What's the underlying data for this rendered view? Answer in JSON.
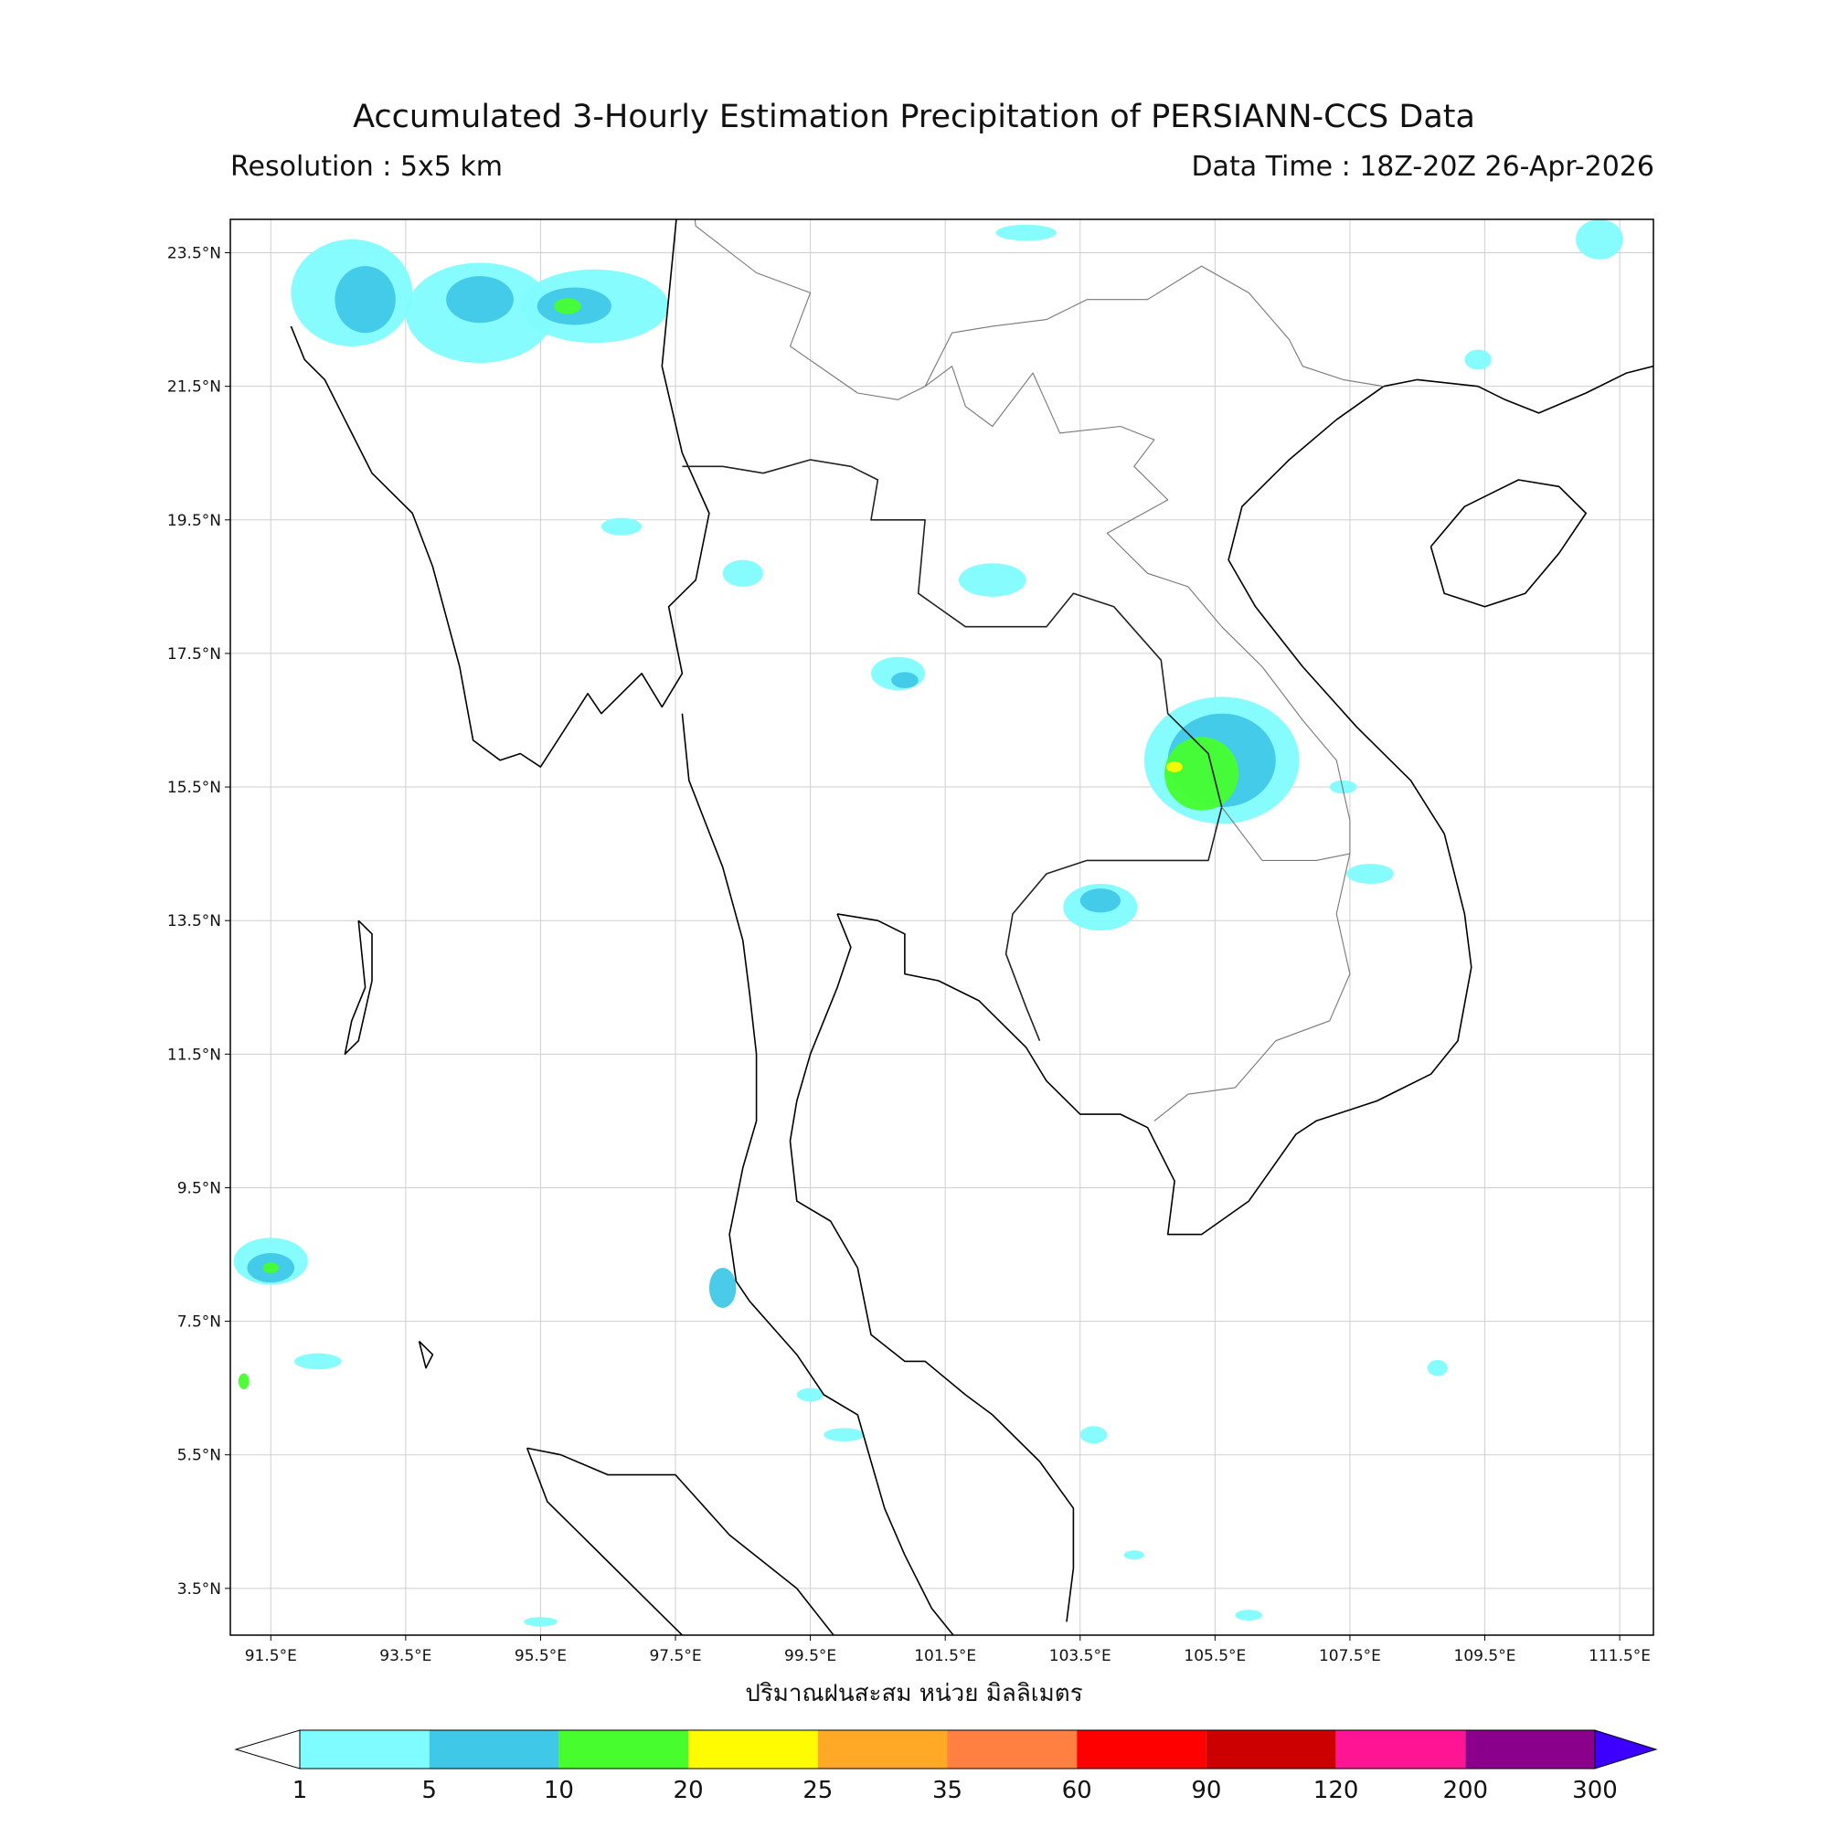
{
  "title": "Accumulated 3-Hourly Estimation Precipitation of PERSIANN-CCS Data",
  "resolution": "Resolution : 5x5 km",
  "data_time": "Data Time : 18Z-20Z 26-Apr-2026",
  "x_axis_label": "ปริมาณฝนสะสม หน่วย มิลลิเมตร",
  "lat_ticks": [
    "23.5°N",
    "21.5°N",
    "19.5°N",
    "17.5°N",
    "15.5°N",
    "13.5°N",
    "11.5°N",
    "9.5°N",
    "7.5°N",
    "5.5°N",
    "3.5°N"
  ],
  "lon_ticks": [
    "91.5°E",
    "93.5°E",
    "95.5°E",
    "97.5°E",
    "99.5°E",
    "101.5°E",
    "103.5°E",
    "105.5°E",
    "107.5°E",
    "109.5°E",
    "111.5°E"
  ],
  "colorbar": {
    "labels": [
      "1",
      "5",
      "10",
      "20",
      "25",
      "35",
      "60",
      "90",
      "120",
      "200",
      "300"
    ],
    "colors": [
      "#7ffcff",
      "#40c8e8",
      "#47fd2e",
      "#fffb00",
      "#ffa927",
      "#ff8040",
      "#ff0000",
      "#cc0000",
      "#ff1493",
      "#8b008b",
      "#3d00ff"
    ]
  },
  "rain_cells": [
    {
      "lon": 92.7,
      "lat": 22.9,
      "rx": 0.9,
      "ry": 0.8,
      "lvl": 0
    },
    {
      "lon": 92.9,
      "lat": 22.8,
      "rx": 0.45,
      "ry": 0.5,
      "lvl": 1
    },
    {
      "lon": 94.6,
      "lat": 22.6,
      "rx": 1.1,
      "ry": 0.75,
      "lvl": 0
    },
    {
      "lon": 94.6,
      "lat": 22.8,
      "rx": 0.5,
      "ry": 0.35,
      "lvl": 1
    },
    {
      "lon": 96.3,
      "lat": 22.7,
      "rx": 1.1,
      "ry": 0.55,
      "lvl": 0
    },
    {
      "lon": 96.0,
      "lat": 22.7,
      "rx": 0.55,
      "ry": 0.28,
      "lvl": 1
    },
    {
      "lon": 95.9,
      "lat": 22.7,
      "rx": 0.2,
      "ry": 0.12,
      "lvl": 2
    },
    {
      "lon": 102.2,
      "lat": 18.6,
      "rx": 0.5,
      "ry": 0.25,
      "lvl": 0
    },
    {
      "lon": 98.5,
      "lat": 18.7,
      "rx": 0.3,
      "ry": 0.2,
      "lvl": 0
    },
    {
      "lon": 100.8,
      "lat": 17.2,
      "rx": 0.4,
      "ry": 0.25,
      "lvl": 0
    },
    {
      "lon": 100.9,
      "lat": 17.1,
      "rx": 0.2,
      "ry": 0.12,
      "lvl": 1
    },
    {
      "lon": 96.7,
      "lat": 19.4,
      "rx": 0.3,
      "ry": 0.13,
      "lvl": 0
    },
    {
      "lon": 105.6,
      "lat": 15.9,
      "rx": 1.15,
      "ry": 0.95,
      "lvl": 0
    },
    {
      "lon": 105.6,
      "lat": 15.9,
      "rx": 0.8,
      "ry": 0.7,
      "lvl": 1
    },
    {
      "lon": 105.3,
      "lat": 15.7,
      "rx": 0.55,
      "ry": 0.55,
      "lvl": 2
    },
    {
      "lon": 104.9,
      "lat": 15.8,
      "rx": 0.12,
      "ry": 0.08,
      "lvl": 3
    },
    {
      "lon": 103.8,
      "lat": 13.7,
      "rx": 0.55,
      "ry": 0.35,
      "lvl": 0
    },
    {
      "lon": 103.8,
      "lat": 13.8,
      "rx": 0.3,
      "ry": 0.18,
      "lvl": 1
    },
    {
      "lon": 91.5,
      "lat": 8.4,
      "rx": 0.55,
      "ry": 0.35,
      "lvl": 0
    },
    {
      "lon": 91.5,
      "lat": 8.3,
      "rx": 0.35,
      "ry": 0.22,
      "lvl": 1
    },
    {
      "lon": 91.5,
      "lat": 8.3,
      "rx": 0.12,
      "ry": 0.08,
      "lvl": 2
    },
    {
      "lon": 92.2,
      "lat": 6.9,
      "rx": 0.35,
      "ry": 0.12,
      "lvl": 0
    },
    {
      "lon": 91.1,
      "lat": 6.6,
      "rx": 0.08,
      "ry": 0.12,
      "lvl": 2
    },
    {
      "lon": 107.8,
      "lat": 14.2,
      "rx": 0.35,
      "ry": 0.15,
      "lvl": 0
    },
    {
      "lon": 107.4,
      "lat": 15.5,
      "rx": 0.2,
      "ry": 0.1,
      "lvl": 0
    },
    {
      "lon": 98.2,
      "lat": 8.0,
      "rx": 0.2,
      "ry": 0.3,
      "lvl": 1
    },
    {
      "lon": 100.0,
      "lat": 5.8,
      "rx": 0.3,
      "ry": 0.1,
      "lvl": 0
    },
    {
      "lon": 103.7,
      "lat": 5.8,
      "rx": 0.2,
      "ry": 0.13,
      "lvl": 0
    },
    {
      "lon": 111.2,
      "lat": 23.7,
      "rx": 0.35,
      "ry": 0.3,
      "lvl": 0
    },
    {
      "lon": 102.7,
      "lat": 23.8,
      "rx": 0.45,
      "ry": 0.12,
      "lvl": 0
    },
    {
      "lon": 109.4,
      "lat": 21.9,
      "rx": 0.2,
      "ry": 0.15,
      "lvl": 0
    },
    {
      "lon": 108.8,
      "lat": 6.8,
      "rx": 0.15,
      "ry": 0.12,
      "lvl": 0
    },
    {
      "lon": 99.5,
      "lat": 6.4,
      "rx": 0.2,
      "ry": 0.1,
      "lvl": 0
    },
    {
      "lon": 95.5,
      "lat": 3.0,
      "rx": 0.25,
      "ry": 0.07,
      "lvl": 0
    },
    {
      "lon": 106.0,
      "lat": 3.1,
      "rx": 0.2,
      "ry": 0.08,
      "lvl": 0
    },
    {
      "lon": 104.3,
      "lat": 4.0,
      "rx": 0.15,
      "ry": 0.07,
      "lvl": 0
    }
  ],
  "coastlines": {
    "indochina": [
      [
        97.9,
        28.0
      ],
      [
        97.3,
        21.8
      ],
      [
        97.6,
        20.5
      ],
      [
        98.0,
        19.6
      ],
      [
        97.8,
        18.6
      ],
      [
        97.4,
        18.2
      ],
      [
        97.6,
        17.2
      ],
      [
        97.3,
        16.7
      ],
      [
        97.0,
        17.2
      ],
      [
        96.4,
        16.6
      ],
      [
        96.2,
        16.9
      ],
      [
        95.5,
        15.8
      ],
      [
        95.2,
        16.0
      ],
      [
        94.9,
        15.9
      ],
      [
        94.5,
        16.2
      ],
      [
        94.3,
        17.3
      ],
      [
        93.9,
        18.8
      ],
      [
        93.6,
        19.6
      ],
      [
        93.0,
        20.2
      ],
      [
        92.6,
        21.0
      ],
      [
        92.3,
        21.6
      ],
      [
        92.0,
        21.9
      ],
      [
        91.8,
        22.4
      ]
    ],
    "malay_peninsula": [
      [
        97.6,
        16.6
      ],
      [
        97.7,
        15.6
      ],
      [
        98.2,
        14.3
      ],
      [
        98.5,
        13.2
      ],
      [
        98.6,
        12.4
      ],
      [
        98.7,
        11.5
      ],
      [
        98.7,
        10.5
      ],
      [
        98.5,
        9.8
      ],
      [
        98.3,
        8.8
      ],
      [
        98.4,
        8.1
      ],
      [
        98.6,
        7.8
      ],
      [
        99.3,
        7.0
      ],
      [
        99.7,
        6.4
      ],
      [
        100.2,
        6.1
      ],
      [
        100.4,
        5.4
      ],
      [
        100.6,
        4.7
      ],
      [
        100.9,
        4.0
      ],
      [
        101.3,
        3.2
      ],
      [
        101.7,
        2.7
      ]
    ],
    "gulf_thailand_west": [
      [
        99.9,
        13.6
      ],
      [
        100.1,
        13.1
      ],
      [
        99.9,
        12.5
      ],
      [
        99.5,
        11.5
      ],
      [
        99.3,
        10.8
      ],
      [
        99.2,
        10.2
      ],
      [
        99.3,
        9.3
      ],
      [
        99.8,
        9.0
      ],
      [
        100.2,
        8.3
      ],
      [
        100.4,
        7.3
      ],
      [
        100.9,
        6.9
      ],
      [
        101.2,
        6.9
      ],
      [
        101.8,
        6.4
      ],
      [
        102.2,
        6.1
      ],
      [
        102.9,
        5.4
      ],
      [
        103.4,
        4.7
      ],
      [
        103.4,
        3.8
      ],
      [
        103.3,
        3.0
      ]
    ],
    "gulf_thailand_east": [
      [
        99.9,
        13.6
      ],
      [
        100.5,
        13.5
      ],
      [
        100.9,
        13.3
      ],
      [
        100.9,
        12.7
      ],
      [
        101.4,
        12.6
      ],
      [
        102.0,
        12.3
      ],
      [
        102.3,
        12.0
      ],
      [
        102.7,
        11.6
      ],
      [
        103.0,
        11.1
      ],
      [
        103.5,
        10.6
      ],
      [
        104.1,
        10.6
      ],
      [
        104.5,
        10.4
      ],
      [
        104.9,
        9.6
      ],
      [
        104.8,
        8.8
      ],
      [
        105.3,
        8.8
      ],
      [
        106.0,
        9.3
      ],
      [
        106.7,
        10.3
      ],
      [
        107.0,
        10.5
      ],
      [
        107.9,
        10.8
      ],
      [
        108.7,
        11.2
      ],
      [
        109.1,
        11.7
      ],
      [
        109.3,
        12.8
      ],
      [
        109.2,
        13.6
      ],
      [
        108.9,
        14.8
      ],
      [
        108.4,
        15.6
      ],
      [
        107.6,
        16.4
      ],
      [
        106.8,
        17.3
      ],
      [
        106.1,
        18.2
      ],
      [
        105.7,
        18.9
      ],
      [
        105.9,
        19.7
      ],
      [
        106.6,
        20.4
      ],
      [
        107.3,
        21.0
      ],
      [
        108.0,
        21.5
      ],
      [
        108.5,
        21.6
      ],
      [
        109.4,
        21.5
      ],
      [
        109.8,
        21.3
      ],
      [
        110.3,
        21.1
      ],
      [
        111.0,
        21.4
      ],
      [
        111.6,
        21.7
      ],
      [
        112.0,
        21.8
      ]
    ],
    "hainan": [
      [
        108.7,
        19.1
      ],
      [
        109.2,
        19.7
      ],
      [
        110.0,
        20.1
      ],
      [
        110.6,
        20.0
      ],
      [
        111.0,
        19.6
      ],
      [
        110.6,
        19.0
      ],
      [
        110.1,
        18.4
      ],
      [
        109.5,
        18.2
      ],
      [
        108.9,
        18.4
      ],
      [
        108.7,
        19.1
      ]
    ],
    "sumatra": [
      [
        95.3,
        5.6
      ],
      [
        95.8,
        5.5
      ],
      [
        96.5,
        5.2
      ],
      [
        97.5,
        5.2
      ],
      [
        98.3,
        4.3
      ],
      [
        99.3,
        3.5
      ],
      [
        100.0,
        2.6
      ]
    ],
    "sumatra_w": [
      [
        95.3,
        5.6
      ],
      [
        95.6,
        4.8
      ],
      [
        96.3,
        4.1
      ],
      [
        97.0,
        3.4
      ],
      [
        97.6,
        2.8
      ]
    ],
    "andaman": [
      [
        92.8,
        13.5
      ],
      [
        92.9,
        12.5
      ],
      [
        92.7,
        12.0
      ],
      [
        92.6,
        11.5
      ],
      [
        92.8,
        11.7
      ],
      [
        93.0,
        12.6
      ],
      [
        93.0,
        13.3
      ],
      [
        92.8,
        13.5
      ]
    ],
    "nicobar": [
      [
        93.7,
        7.2
      ],
      [
        93.8,
        6.8
      ],
      [
        93.9,
        7.0
      ],
      [
        93.7,
        7.2
      ]
    ]
  },
  "borders": [
    [
      [
        97.6,
        20.3
      ],
      [
        98.2,
        20.3
      ],
      [
        98.8,
        20.2
      ],
      [
        99.5,
        20.4
      ],
      [
        100.1,
        20.3
      ],
      [
        100.5,
        20.1
      ],
      [
        100.4,
        19.5
      ],
      [
        101.2,
        19.5
      ],
      [
        101.1,
        18.4
      ],
      [
        101.8,
        17.9
      ],
      [
        102.4,
        17.9
      ],
      [
        103.0,
        17.9
      ],
      [
        103.4,
        18.4
      ],
      [
        104.0,
        18.2
      ],
      [
        104.7,
        17.4
      ],
      [
        104.8,
        16.6
      ],
      [
        105.4,
        16.0
      ],
      [
        105.6,
        15.2
      ],
      [
        105.4,
        14.4
      ],
      [
        104.8,
        14.4
      ],
      [
        103.6,
        14.4
      ],
      [
        103.0,
        14.2
      ],
      [
        102.5,
        13.6
      ],
      [
        102.4,
        13.0
      ],
      [
        102.7,
        12.2
      ],
      [
        102.9,
        11.7
      ]
    ],
    [
      [
        97.8,
        28.0
      ],
      [
        98.6,
        26.0
      ],
      [
        98.6,
        25.0
      ],
      [
        97.7,
        24.7
      ],
      [
        97.8,
        23.9
      ],
      [
        98.7,
        23.2
      ],
      [
        99.5,
        22.9
      ],
      [
        99.2,
        22.1
      ],
      [
        100.2,
        21.4
      ],
      [
        100.8,
        21.3
      ],
      [
        101.2,
        21.5
      ],
      [
        101.6,
        22.3
      ],
      [
        102.2,
        22.4
      ],
      [
        103.0,
        22.5
      ],
      [
        103.6,
        22.8
      ],
      [
        104.5,
        22.8
      ],
      [
        105.3,
        23.3
      ],
      [
        106.0,
        22.9
      ],
      [
        106.6,
        22.2
      ],
      [
        106.8,
        21.8
      ],
      [
        107.4,
        21.6
      ],
      [
        108.0,
        21.5
      ]
    ],
    [
      [
        101.2,
        21.5
      ],
      [
        101.6,
        21.8
      ],
      [
        101.8,
        21.2
      ],
      [
        102.2,
        20.9
      ],
      [
        102.8,
        21.7
      ],
      [
        103.2,
        20.8
      ],
      [
        104.1,
        20.9
      ],
      [
        104.6,
        20.7
      ],
      [
        104.3,
        20.3
      ],
      [
        104.8,
        19.8
      ],
      [
        103.9,
        19.3
      ],
      [
        104.5,
        18.7
      ],
      [
        105.1,
        18.5
      ],
      [
        105.6,
        17.9
      ],
      [
        106.2,
        17.3
      ],
      [
        106.8,
        16.5
      ],
      [
        107.3,
        15.9
      ],
      [
        107.5,
        15.0
      ],
      [
        107.5,
        14.5
      ],
      [
        107.3,
        13.6
      ],
      [
        107.5,
        12.7
      ],
      [
        107.2,
        12.0
      ],
      [
        106.4,
        11.7
      ],
      [
        105.8,
        11.0
      ],
      [
        105.1,
        10.9
      ],
      [
        104.6,
        10.5
      ]
    ],
    [
      [
        105.6,
        15.2
      ],
      [
        106.2,
        14.4
      ],
      [
        107.0,
        14.4
      ],
      [
        107.5,
        14.5
      ]
    ]
  ]
}
